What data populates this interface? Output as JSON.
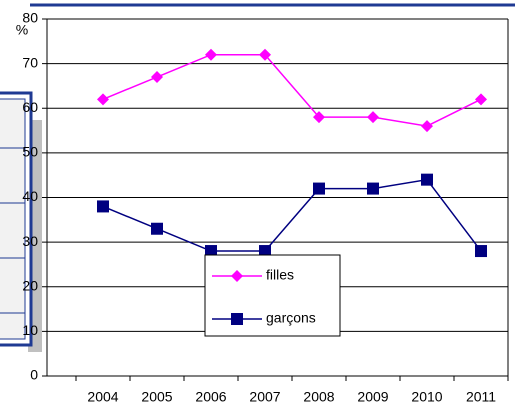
{
  "chart_data": {
    "type": "line",
    "y_label": "%",
    "categories": [
      "2004",
      "2005",
      "2006",
      "2007",
      "2008",
      "2009",
      "2010",
      "2011"
    ],
    "series": [
      {
        "name": "filles",
        "color": "#ff00ff",
        "marker": "diamond",
        "values": [
          62,
          67,
          72,
          72,
          58,
          58,
          56,
          62
        ]
      },
      {
        "name": "garçons",
        "color": "#000080",
        "marker": "square",
        "values": [
          38,
          33,
          28,
          28,
          42,
          42,
          44,
          28
        ]
      }
    ],
    "ylim": [
      0,
      80
    ],
    "yticks": [
      0,
      10,
      20,
      30,
      40,
      50,
      60,
      70,
      80
    ],
    "grid": true
  }
}
